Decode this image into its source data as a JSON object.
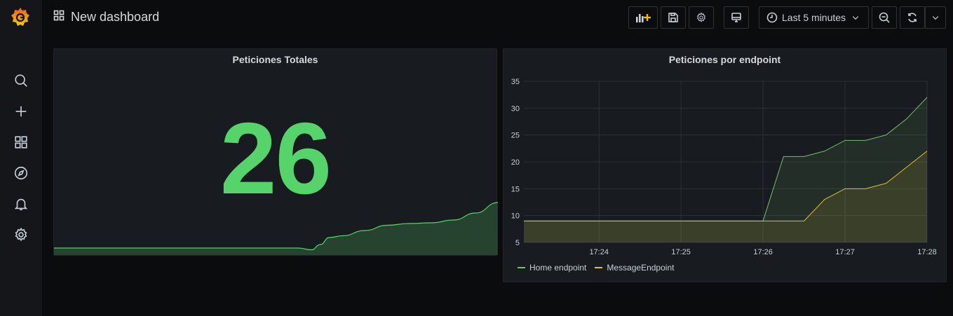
{
  "header": {
    "title": "New dashboard",
    "time_range": "Last 5 minutes"
  },
  "sidebar": {
    "items": [
      {
        "icon": "search-icon"
      },
      {
        "icon": "plus-icon"
      },
      {
        "icon": "dashboards-icon"
      },
      {
        "icon": "explore-icon"
      },
      {
        "icon": "bell-icon"
      },
      {
        "icon": "gear-icon"
      }
    ]
  },
  "colors": {
    "green": "#56d36a",
    "yellow": "#e0c030",
    "background": "#0b0c0e",
    "panel": "#181b1f"
  },
  "panels": {
    "stat": {
      "title": "Peticiones Totales",
      "value": "26"
    },
    "timeseries": {
      "title": "Peticiones por endpoint"
    }
  },
  "chart_data": [
    {
      "type": "area",
      "title": "Peticiones Totales",
      "x": [
        0,
        10,
        20,
        30,
        40,
        50,
        55,
        58,
        60,
        62,
        65,
        70,
        75,
        80,
        85,
        90,
        95,
        100
      ],
      "series": [
        {
          "values": [
            1,
            1,
            1,
            1,
            1,
            1,
            1,
            0.5,
            2,
            4,
            4.5,
            6,
            7.5,
            8,
            8.2,
            9,
            11,
            14
          ]
        }
      ],
      "grid": false
    },
    {
      "type": "line",
      "title": "Peticiones por endpoint",
      "x": [
        "17:23:05",
        "17:24",
        "17:25",
        "17:26",
        "17:26:15",
        "17:26:30",
        "17:26:45",
        "17:27",
        "17:27:15",
        "17:27:30",
        "17:27:45",
        "17:28"
      ],
      "x_ticks": [
        "17:24",
        "17:25",
        "17:26",
        "17:27",
        "17:28"
      ],
      "series": [
        {
          "name": "Home endpoint",
          "color": "#73bf69",
          "values": [
            9,
            9,
            9,
            9,
            21,
            21,
            22,
            24,
            24,
            25,
            28,
            32
          ]
        },
        {
          "name": "MessageEndpoint",
          "color": "#e0c030",
          "values": [
            9,
            9,
            9,
            9,
            9,
            9,
            13,
            15,
            15,
            16,
            19,
            22
          ]
        }
      ],
      "y_ticks": [
        "5",
        "10",
        "15",
        "20",
        "25",
        "30",
        "35"
      ],
      "ylim": [
        5,
        35
      ],
      "grid": true,
      "legend": "bottom-left"
    }
  ]
}
